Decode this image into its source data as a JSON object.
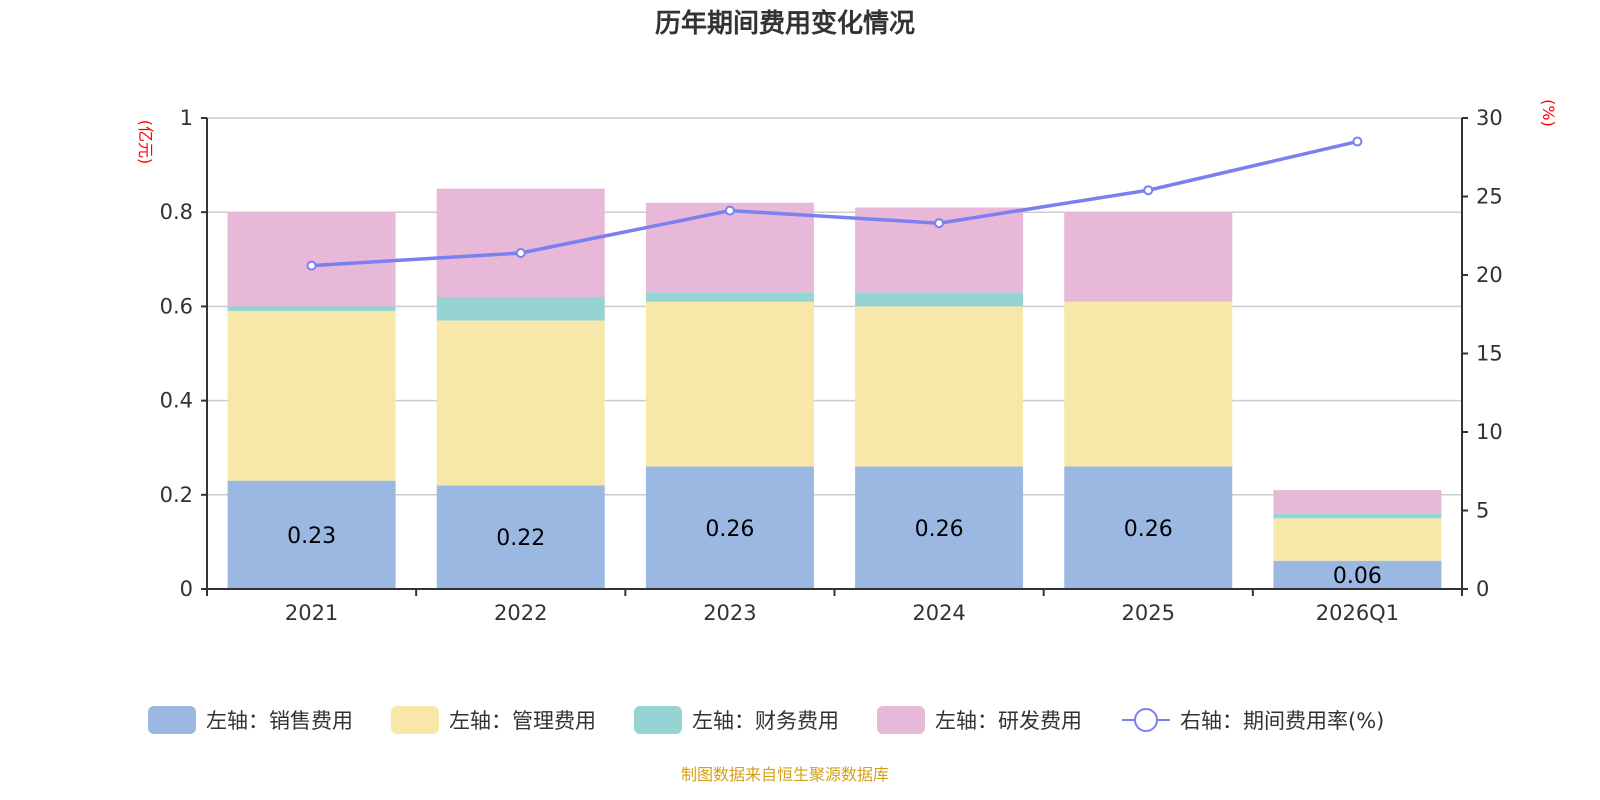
{
  "chart_data": {
    "type": "bar",
    "stacked": true,
    "title": "历年期间费用变化情况",
    "categories": [
      "2021",
      "2022",
      "2023",
      "2024",
      "2025",
      "2026Q1"
    ],
    "left_axis": {
      "unit": "(亿元)",
      "ylim": [
        0,
        1
      ],
      "ticks": [
        "0",
        "0.2",
        "0.4",
        "0.6",
        "0.8",
        "1"
      ],
      "tick_values": [
        0,
        0.2,
        0.4,
        0.6,
        0.8,
        1
      ]
    },
    "right_axis": {
      "unit": "(%)",
      "ylim": [
        0,
        30
      ],
      "ticks": [
        "0",
        "5",
        "10",
        "15",
        "20",
        "25",
        "30"
      ],
      "tick_values": [
        0,
        5,
        10,
        15,
        20,
        25,
        30
      ]
    },
    "grid": true,
    "legend_position": "bottom",
    "series": [
      {
        "name": "左轴：销售费用",
        "axis": "left",
        "type": "bar",
        "color": "#9bb8e3",
        "values": [
          0.23,
          0.22,
          0.26,
          0.26,
          0.26,
          0.06
        ],
        "labels": [
          "0.23",
          "0.22",
          "0.26",
          "0.26",
          "0.26",
          "0.06"
        ]
      },
      {
        "name": "左轴：管理费用",
        "axis": "left",
        "type": "bar",
        "color": "#f7e7a9",
        "values": [
          0.36,
          0.35,
          0.35,
          0.34,
          0.35,
          0.09
        ]
      },
      {
        "name": "左轴：财务费用",
        "axis": "left",
        "type": "bar",
        "color": "#96d4d4",
        "values": [
          0.01,
          0.05,
          0.02,
          0.03,
          0.0,
          0.01
        ]
      },
      {
        "name": "左轴：研发费用",
        "axis": "left",
        "type": "bar",
        "color": "#e7b8d8",
        "values": [
          0.2,
          0.23,
          0.19,
          0.18,
          0.19,
          0.05
        ]
      },
      {
        "name": "右轴：期间费用率(%)",
        "axis": "right",
        "type": "line",
        "color": "#7b7ff0",
        "values": [
          20.6,
          21.4,
          24.1,
          23.3,
          25.4,
          28.5
        ]
      }
    ],
    "source_note": "制图数据来自恒生聚源数据库"
  }
}
